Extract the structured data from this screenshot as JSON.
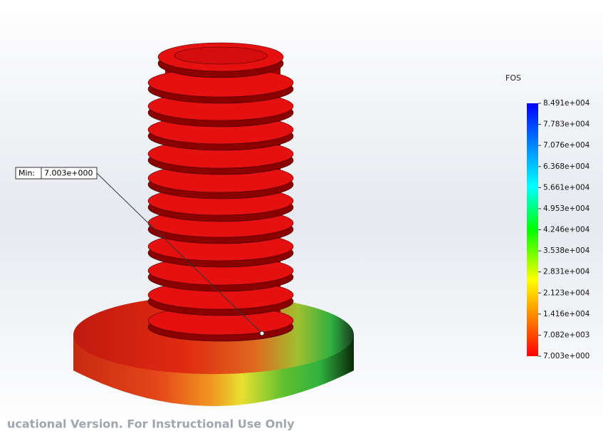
{
  "legend": {
    "title": "FOS",
    "labels": [
      "8.491e+004",
      "7.783e+004",
      "7.076e+004",
      "6.368e+004",
      "5.661e+004",
      "4.953e+004",
      "4.246e+004",
      "3.538e+004",
      "2.831e+004",
      "2.123e+004",
      "1.416e+004",
      "7.082e+003",
      "7.003e+000"
    ]
  },
  "probe": {
    "label": "Min:",
    "value": "7.003e+000"
  },
  "watermark": "ucational Version. For Instructional Use Only"
}
